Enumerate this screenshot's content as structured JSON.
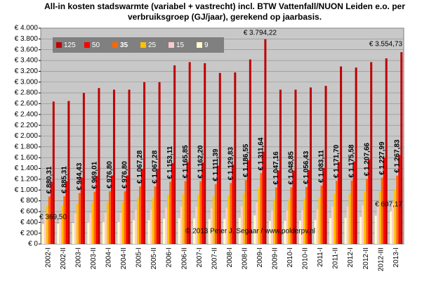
{
  "chart_data": {
    "type": "bar",
    "title": "All-in kosten stadswarmte (variabel + vastrecht) incl. BTW Vattenfall/NUON Leiden e.o. per verbruiksgroep (GJ/jaar), gerekend op jaarbasis.",
    "categories": [
      "2002-I",
      "2002-II",
      "2003-I",
      "2003-II",
      "2004-I",
      "2004-II",
      "2005-I",
      "2005-II",
      "2006-I",
      "2006-II",
      "2007-I",
      "2007-II",
      "2008-I",
      "2008-II",
      "2009-I",
      "2009-II",
      "2010-I",
      "2010-II",
      "2011-I",
      "2011-II",
      "2012-I",
      "2012-II",
      "2012-III",
      "2013-I"
    ],
    "series": [
      {
        "name": "125",
        "color": "#c00000",
        "values": [
          2640,
          2650,
          2800,
          2890,
          2860,
          2860,
          3000,
          3000,
          3310,
          3370,
          3350,
          3170,
          3180,
          3420,
          3794.22,
          2860,
          2860,
          2900,
          2930,
          3290,
          3270,
          3370,
          3440,
          3554.73
        ]
      },
      {
        "name": "50",
        "color": "#ff0000",
        "values": [
          1150,
          1160,
          1230,
          1260,
          1270,
          1270,
          1390,
          1390,
          1500,
          1520,
          1510,
          1450,
          1470,
          1550,
          1710,
          1360,
          1360,
          1370,
          1410,
          1520,
          1530,
          1570,
          1600,
          1650
        ]
      },
      {
        "name": "35",
        "color": "#ff6600",
        "values": [
          880.31,
          885.31,
          944.43,
          969.01,
          976.8,
          976.8,
          1067.28,
          1067.28,
          1153.11,
          1165.85,
          1162.2,
          1111.39,
          1129.83,
          1186.55,
          1311.64,
          1047.16,
          1048.85,
          1056.43,
          1083.11,
          1171.7,
          1175.58,
          1207.66,
          1227.99,
          1267.83
        ],
        "value_labels": [
          "€ 880,31",
          "€ 885,31",
          "€ 944,43",
          "€ 969,01",
          "€ 976,80",
          "€ 976,80",
          "€ 1.067,28",
          "€ 1.067,28",
          "€ 1.153,11",
          "€ 1.165,85",
          "€ 1.162,20",
          "€ 1.111,39",
          "€ 1.129,83",
          "€ 1.186,55",
          "€ 1.311,64",
          "€ 1.047,16",
          "€ 1.048,85",
          "€ 1.056,43",
          "€ 1.083,11",
          "€ 1.171,70",
          "€ 1.175,58",
          "€ 1.207,66",
          "€ 1.227,99",
          "€ 1.267,83"
        ]
      },
      {
        "name": "25",
        "color": "#ffc000",
        "values": [
          700,
          705,
          750,
          770,
          775,
          775,
          850,
          850,
          915,
          925,
          920,
          885,
          900,
          945,
          1040,
          830,
          830,
          840,
          860,
          930,
          935,
          960,
          975,
          1005
        ]
      },
      {
        "name": "15",
        "color": "#ffcccc",
        "values": [
          520,
          525,
          560,
          575,
          580,
          580,
          630,
          630,
          680,
          690,
          690,
          660,
          670,
          700,
          770,
          620,
          620,
          625,
          640,
          690,
          695,
          715,
          725,
          750
        ]
      },
      {
        "name": "9",
        "color": "#ffffcc",
        "values": [
          369.5,
          372,
          390,
          400,
          405,
          405,
          440,
          440,
          470,
          475,
          475,
          460,
          465,
          485,
          530,
          430,
          430,
          435,
          445,
          480,
          485,
          500,
          525,
          607.17
        ]
      }
    ],
    "annotations": [
      "€ 3.794,22",
      "€ 3.554,73",
      "€ 369,50",
      "€ 607,17",
      "© 2013 Peter J. Segaar / www.polderpv.nl"
    ],
    "ylim": [
      0,
      4000
    ],
    "yticks": [
      {
        "value": 0,
        "label": "€ 0"
      },
      {
        "value": 200,
        "label": "€ 200"
      },
      {
        "value": 400,
        "label": "€ 400"
      },
      {
        "value": 600,
        "label": "€ 600"
      },
      {
        "value": 800,
        "label": "€ 800"
      },
      {
        "value": 1000,
        "label": "€ 1.000"
      },
      {
        "value": 1200,
        "label": "€ 1.200"
      },
      {
        "value": 1400,
        "label": "€ 1.400"
      },
      {
        "value": 1600,
        "label": "€ 1.600"
      },
      {
        "value": 1800,
        "label": "€ 1.800"
      },
      {
        "value": 2000,
        "label": "€ 2.000"
      },
      {
        "value": 2200,
        "label": "€ 2.200"
      },
      {
        "value": 2400,
        "label": "€ 2.400"
      },
      {
        "value": 2600,
        "label": "€ 2.600"
      },
      {
        "value": 2800,
        "label": "€ 2.800"
      },
      {
        "value": 3000,
        "label": "€ 3.000"
      },
      {
        "value": 3200,
        "label": "€ 3.200"
      },
      {
        "value": 3400,
        "label": "€ 3.400"
      },
      {
        "value": 3600,
        "label": "€ 3.600"
      },
      {
        "value": 3800,
        "label": "€ 3.800"
      },
      {
        "value": 4000,
        "label": "€ 4.000"
      }
    ],
    "grid": true,
    "legend": "top-left"
  }
}
